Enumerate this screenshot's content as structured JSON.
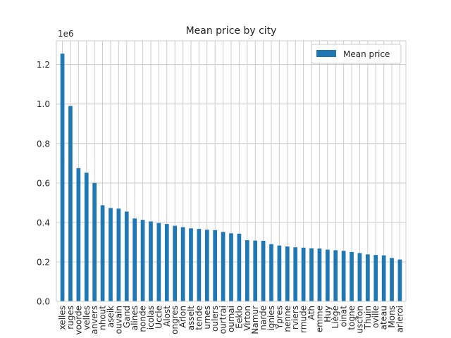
{
  "chart_data": {
    "type": "bar",
    "title": "Mean price by city",
    "xlabel": "",
    "ylabel": "",
    "offset_text": "1e6",
    "ylim": [
      0,
      1320000
    ],
    "yticks": [
      0,
      200000,
      400000,
      600000,
      800000,
      1000000,
      1200000
    ],
    "ytick_labels": [
      "0.0",
      "0.2",
      "0.4",
      "0.6",
      "0.8",
      "1.0",
      "1.2"
    ],
    "grid": true,
    "legend_position": "top-right",
    "colors": {
      "bar": "#1f77b4",
      "grid": "#cccccc",
      "background": "#ffffff"
    },
    "categories": [
      "xelles",
      "ruges",
      "voorde",
      "velles",
      "anvers",
      "nhout",
      "aseik",
      "ouvain",
      "Gand",
      "alines",
      "nonde",
      "icolas",
      "Uccle",
      "Alost",
      "ongres",
      "Arlon",
      "asselt",
      "tende",
      "urnes",
      "oulers",
      "ourtrai",
      "ournai",
      "Eeklo",
      "Virton",
      "Namur",
      "narde",
      "ignies",
      "Ypres",
      "nenne",
      "rviers",
      "rmude",
      "Ath",
      "emme",
      "Huy",
      "Liège",
      "oinat",
      "togne",
      "uscfon",
      "Thuin",
      "oville",
      "ateau",
      "Mons",
      "arleroi"
    ],
    "series": [
      {
        "name": "Mean price",
        "values": [
          1255000,
          990000,
          675000,
          652000,
          600000,
          487000,
          473000,
          470000,
          455000,
          420000,
          413000,
          405000,
          397000,
          392000,
          383000,
          376000,
          370000,
          367000,
          363000,
          361000,
          352000,
          345000,
          343000,
          310000,
          308000,
          307000,
          290000,
          283000,
          278000,
          274000,
          272000,
          269000,
          268000,
          262000,
          259000,
          256000,
          250000,
          245000,
          238000,
          235000,
          233000,
          220000,
          212000
        ]
      }
    ]
  }
}
